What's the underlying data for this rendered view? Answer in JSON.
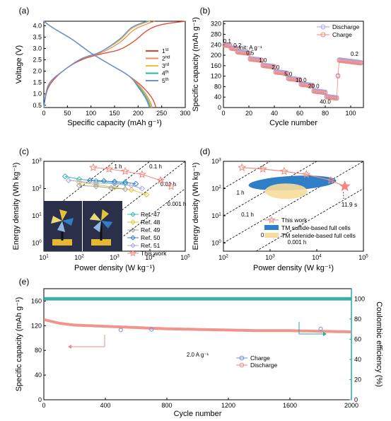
{
  "colors": {
    "axis": "#000000",
    "red": "#e0452a",
    "orange": "#f08a5d",
    "yellow": "#e6c23a",
    "teal": "#2bb3a3",
    "blue": "#6b8fe0",
    "salmon": "#f08a80",
    "lavender": "#a9a6e6",
    "cyan": "#33bbb8",
    "full_blue": "#2f7fc8",
    "full_yellow": "#f7dd9b",
    "ce_green": "#27aaa2"
  },
  "chart_data": [
    {
      "panel": "(a)",
      "type": "line",
      "xlabel": "Specific capacity (mAh g⁻¹)",
      "ylabel": "Voltage (V)",
      "xlim": [
        0,
        300
      ],
      "ylim": [
        0.4,
        4.2
      ],
      "xticks": [
        "0",
        "50",
        "100",
        "150",
        "200",
        "250",
        "300"
      ],
      "yticks": [
        "0.5",
        "1.0",
        "1.5",
        "2.0",
        "2.5",
        "3.0",
        "3.5",
        "4.0"
      ],
      "legend": [
        "1st",
        "2nd",
        "3rd",
        "4th",
        "5th"
      ],
      "legend_pos": "center-right",
      "series": [
        {
          "name": "1st",
          "charge": [
            [
              0,
              0.4
            ],
            [
              10,
              1.3
            ],
            [
              40,
              2.0
            ],
            [
              80,
              2.5
            ],
            [
              120,
              2.75
            ],
            [
              160,
              2.95
            ],
            [
              190,
              3.3
            ],
            [
              220,
              3.8
            ],
            [
              250,
              4.05
            ],
            [
              300,
              4.2
            ]
          ],
          "discharge": [
            [
              0,
              4.2
            ],
            [
              20,
              3.9
            ],
            [
              60,
              3.4
            ],
            [
              100,
              2.8
            ],
            [
              140,
              2.3
            ],
            [
              180,
              1.8
            ],
            [
              210,
              1.3
            ],
            [
              230,
              0.8
            ],
            [
              238,
              0.4
            ]
          ]
        },
        {
          "name": "2nd",
          "charge": [
            [
              0,
              0.4
            ],
            [
              10,
              1.4
            ],
            [
              40,
              2.0
            ],
            [
              80,
              2.55
            ],
            [
              120,
              2.8
            ],
            [
              160,
              3.25
            ],
            [
              190,
              3.8
            ],
            [
              215,
              4.05
            ],
            [
              235,
              4.2
            ]
          ],
          "discharge": [
            [
              0,
              4.2
            ],
            [
              20,
              3.9
            ],
            [
              60,
              3.4
            ],
            [
              100,
              2.8
            ],
            [
              140,
              2.3
            ],
            [
              180,
              1.8
            ],
            [
              205,
              1.3
            ],
            [
              222,
              0.8
            ],
            [
              230,
              0.4
            ]
          ]
        },
        {
          "name": "3rd",
          "charge": [
            [
              0,
              0.4
            ],
            [
              10,
              1.4
            ],
            [
              40,
              2.0
            ],
            [
              80,
              2.55
            ],
            [
              120,
              2.85
            ],
            [
              160,
              3.35
            ],
            [
              185,
              3.85
            ],
            [
              210,
              4.1
            ],
            [
              225,
              4.2
            ]
          ],
          "discharge": [
            [
              0,
              4.2
            ],
            [
              20,
              3.9
            ],
            [
              60,
              3.4
            ],
            [
              100,
              2.8
            ],
            [
              140,
              2.3
            ],
            [
              180,
              1.8
            ],
            [
              203,
              1.3
            ],
            [
              220,
              0.8
            ],
            [
              228,
              0.4
            ]
          ]
        },
        {
          "name": "4th",
          "charge": [
            [
              0,
              0.4
            ],
            [
              10,
              1.4
            ],
            [
              40,
              2.0
            ],
            [
              80,
              2.55
            ],
            [
              120,
              2.85
            ],
            [
              160,
              3.4
            ],
            [
              185,
              3.9
            ],
            [
              205,
              4.1
            ],
            [
              222,
              4.2
            ]
          ],
          "discharge": [
            [
              0,
              4.2
            ],
            [
              20,
              3.9
            ],
            [
              60,
              3.4
            ],
            [
              100,
              2.8
            ],
            [
              140,
              2.3
            ],
            [
              180,
              1.8
            ],
            [
              202,
              1.3
            ],
            [
              218,
              0.8
            ],
            [
              226,
              0.4
            ]
          ]
        },
        {
          "name": "5th",
          "charge": [
            [
              0,
              0.4
            ],
            [
              10,
              1.4
            ],
            [
              40,
              2.0
            ],
            [
              80,
              2.55
            ],
            [
              120,
              2.85
            ],
            [
              160,
              3.4
            ],
            [
              185,
              3.9
            ],
            [
              205,
              4.1
            ],
            [
              220,
              4.2
            ]
          ],
          "discharge": [
            [
              0,
              4.2
            ],
            [
              20,
              3.9
            ],
            [
              60,
              3.4
            ],
            [
              100,
              2.8
            ],
            [
              140,
              2.3
            ],
            [
              180,
              1.8
            ],
            [
              200,
              1.3
            ],
            [
              216,
              0.8
            ],
            [
              224,
              0.4
            ]
          ]
        }
      ]
    },
    {
      "panel": "(b)",
      "type": "scatter",
      "xlabel": "Cycle number",
      "ylabel": "Specific capacity (mAh g⁻¹)",
      "xlim": [
        0,
        110
      ],
      "ylim": [
        0,
        330
      ],
      "xticks": [
        "0",
        "20",
        "40",
        "60",
        "80",
        "100"
      ],
      "yticks": [
        "0",
        "40",
        "80",
        "120",
        "160",
        "200",
        "240",
        "280",
        "320"
      ],
      "unit_label": "Unit:  A g⁻¹",
      "legend": [
        "Discharge",
        "Charge"
      ],
      "legend_pos": "top-right",
      "rates": [
        {
          "label": "0.1",
          "x": 3,
          "y": 246
        },
        {
          "label": "0.2",
          "x": 11,
          "y": 230
        },
        {
          "label": "0.5",
          "x": 21,
          "y": 201
        },
        {
          "label": "1.0",
          "x": 31,
          "y": 173
        },
        {
          "label": "2.0",
          "x": 41,
          "y": 146
        },
        {
          "label": "5.0",
          "x": 51,
          "y": 121
        },
        {
          "label": "10.0",
          "x": 61,
          "y": 98
        },
        {
          "label": "20.0",
          "x": 71,
          "y": 74
        },
        {
          "label": "40.0",
          "x": 80,
          "y": 15
        },
        {
          "label": "0.2",
          "x": 103,
          "y": 197
        }
      ],
      "levels": [
        [
          1,
          5,
          238
        ],
        [
          6,
          10,
          226
        ],
        [
          11,
          20,
          212
        ],
        [
          21,
          30,
          185
        ],
        [
          31,
          40,
          160
        ],
        [
          41,
          50,
          135
        ],
        [
          51,
          60,
          110
        ],
        [
          61,
          70,
          88
        ],
        [
          71,
          80,
          62
        ],
        [
          81,
          89,
          40
        ],
        [
          90,
          90,
          120
        ],
        [
          91,
          108,
          180
        ]
      ]
    },
    {
      "panel": "(c)",
      "type": "scatter",
      "xlabel": "Power density (W kg⁻¹)",
      "ylabel": "Energy density (Wh kg⁻¹)",
      "xscale": "log",
      "yscale": "log",
      "xlim": [
        10,
        100000
      ],
      "ylim": [
        0.5,
        1000
      ],
      "xtick_exp": [
        "1",
        "2",
        "3",
        "4",
        "5"
      ],
      "ytick_exp": [
        "0",
        "1",
        "2",
        "3"
      ],
      "time_labels": [
        "1 h",
        "0.1 h",
        "0.01 h",
        "0.001 h"
      ],
      "legend_pos": "bottom-right",
      "series": [
        {
          "name": "Ref. 47",
          "color": "#33bbb8",
          "marker": "diamond",
          "points": [
            [
              40,
              280
            ],
            [
              100,
              220
            ],
            [
              300,
              190
            ],
            [
              1000,
              160
            ],
            [
              2000,
              150
            ]
          ]
        },
        {
          "name": "Ref. 48",
          "color": "#e6c23a",
          "marker": "diamond",
          "points": [
            [
              100,
              170
            ],
            [
              300,
              140
            ],
            [
              1000,
              110
            ],
            [
              3000,
              90
            ],
            [
              8000,
              60
            ]
          ]
        },
        {
          "name": "Ref. 49",
          "color": "#a0a0a0",
          "marker": "diamond",
          "points": [
            [
              100,
              130
            ],
            [
              300,
              120
            ],
            [
              800,
              105
            ],
            [
              2000,
              95
            ]
          ]
        },
        {
          "name": "Ref. 50",
          "color": "#2f7fc8",
          "marker": "diamond",
          "points": [
            [
              200,
              200
            ],
            [
              500,
              190
            ],
            [
              1000,
              180
            ],
            [
              2000,
              170
            ],
            [
              4000,
              150
            ]
          ]
        },
        {
          "name": "Ref. 51",
          "color": "#a9a6e6",
          "marker": "diamond",
          "points": [
            [
              50,
              200
            ],
            [
              300,
              160
            ],
            [
              1000,
              150
            ],
            [
              3000,
              130
            ],
            [
              6000,
              100
            ]
          ]
        },
        {
          "name": "This work",
          "color": "#f08a80",
          "marker": "star",
          "points": [
            [
              250,
              590
            ],
            [
              700,
              520
            ],
            [
              2000,
              430
            ],
            [
              6000,
              330
            ],
            [
              20000,
              200
            ],
            [
              40000,
              120
            ]
          ]
        }
      ]
    },
    {
      "panel": "(d)",
      "type": "scatter",
      "xlabel": "Power density (W kg⁻¹)",
      "ylabel": "Energy density (Wh kg⁻¹)",
      "xscale": "log",
      "yscale": "log",
      "xlim": [
        100,
        100000
      ],
      "ylim": [
        0.5,
        1000
      ],
      "xtick_exp": [
        "2",
        "3",
        "4",
        "5"
      ],
      "ytick_exp": [
        "0",
        "1",
        "2",
        "3"
      ],
      "time_labels": [
        "1 h",
        "0.1 h",
        "0.01 h",
        "0.001 h"
      ],
      "annotation": "11.9 s",
      "legend": [
        "This work",
        "TM sulfide-based full cells",
        "TM selenide-based full cells"
      ],
      "legend_pos": "bottom-right",
      "this_work": [
        [
          250,
          590
        ],
        [
          700,
          520
        ],
        [
          2000,
          430
        ],
        [
          6000,
          330
        ],
        [
          20000,
          200
        ],
        [
          40000,
          120
        ]
      ]
    },
    {
      "panel": "(e)",
      "type": "scatter",
      "xlabel": "Cycle number",
      "ylabel": "Specific capacity (mAh g⁻¹)",
      "y2label": "Coulombic efficiency (%)",
      "xlim": [
        0,
        2000
      ],
      "ylim": [
        0,
        180
      ],
      "y2lim": [
        0,
        110
      ],
      "xticks": [
        "0",
        "400",
        "800",
        "1200",
        "1600",
        "2000"
      ],
      "yticks": [
        "0",
        "40",
        "80",
        "120",
        "160"
      ],
      "y2ticks": [
        "0",
        "20",
        "40",
        "60",
        "80",
        "100"
      ],
      "rate_label": "2.0 A g⁻¹",
      "legend": [
        "Charge",
        "Discharge"
      ],
      "legend_pos": "center",
      "capacity": [
        [
          0,
          130
        ],
        [
          100,
          124
        ],
        [
          200,
          121
        ],
        [
          400,
          119
        ],
        [
          600,
          117
        ],
        [
          800,
          115
        ],
        [
          1000,
          114
        ],
        [
          1200,
          113
        ],
        [
          1400,
          112
        ],
        [
          1600,
          112
        ],
        [
          1800,
          111
        ],
        [
          2000,
          110
        ]
      ],
      "efficiency": 100
    }
  ]
}
